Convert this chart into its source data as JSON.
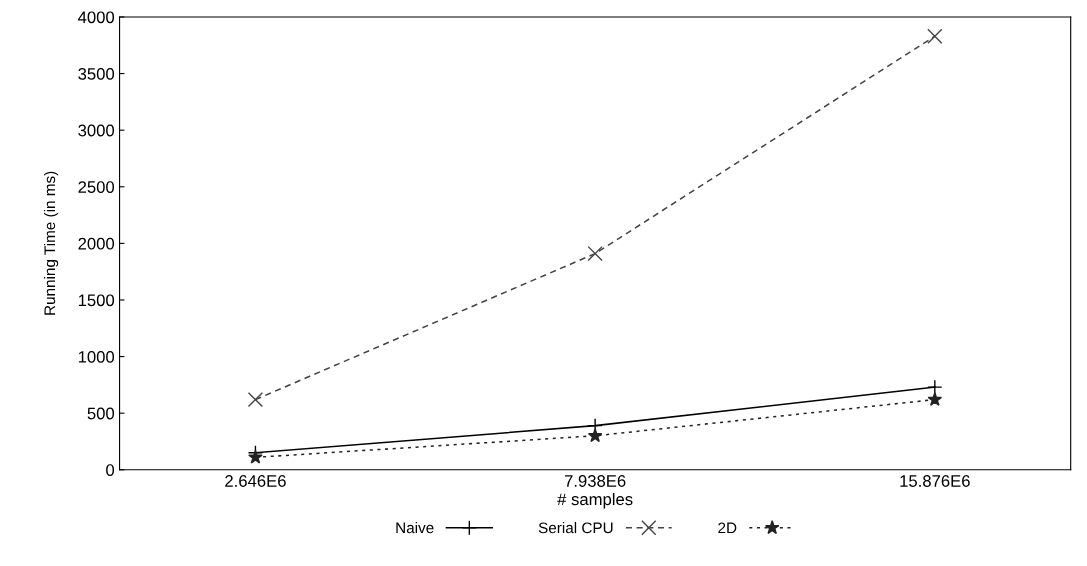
{
  "chart_data": {
    "type": "line",
    "xlabel": "# samples",
    "ylabel": "Running Time (in ms)",
    "categories": [
      "2.646E6",
      "7.938E6",
      "15.876E6"
    ],
    "ylim": [
      0,
      4000
    ],
    "yticks": [
      0,
      500,
      1000,
      1500,
      2000,
      2500,
      3000,
      3500,
      4000
    ],
    "grid": false,
    "legend": "bottom",
    "series": [
      {
        "name": "Naive",
        "color": "#000000",
        "marker": "plus",
        "line_style": "solid",
        "values": [
          150,
          390,
          730
        ]
      },
      {
        "name": "Serial CPU",
        "color": "#444444",
        "marker": "cross",
        "line_style": "dashed",
        "values": [
          620,
          1910,
          3830
        ]
      },
      {
        "name": "2D",
        "color": "#222222",
        "marker": "star",
        "line_style": "dotted",
        "values": [
          110,
          300,
          620
        ]
      }
    ]
  }
}
